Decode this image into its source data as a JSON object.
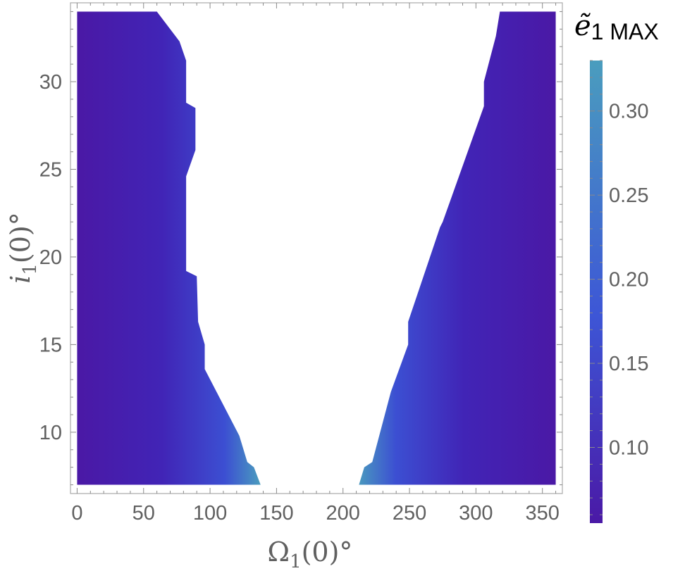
{
  "chart_data": {
    "type": "heatmap",
    "title": "",
    "xlabel": "Ω₁(0)°",
    "xlabel_parts": {
      "main": "Ω",
      "sub": "1",
      "rest": "(0)°"
    },
    "ylabel": "i₁(0)°",
    "ylabel_parts": {
      "main": "i",
      "sub": "1",
      "rest": "(0)°"
    },
    "xlim": [
      -5,
      365
    ],
    "ylim": [
      6.5,
      34.5
    ],
    "data_x_range": [
      0,
      360
    ],
    "data_y_range": [
      7,
      34
    ],
    "xticks": [
      0,
      50,
      100,
      150,
      200,
      250,
      300,
      350
    ],
    "yticks": [
      10,
      15,
      20,
      25,
      30
    ],
    "colorbar": {
      "title": "ẽ₁ MAX",
      "title_parts": {
        "main": "ẽ",
        "sub": "1 MAX"
      },
      "range": [
        0.055,
        0.33
      ],
      "ticks": [
        "0.10",
        "0.15",
        "0.20",
        "0.25",
        "0.30"
      ],
      "tick_values": [
        0.1,
        0.15,
        0.2,
        0.25,
        0.3
      ],
      "colors": [
        "#4a19a6",
        "#3d56d6",
        "#4a9dbe"
      ]
    },
    "left_region_boundary": [
      {
        "i": 7.0,
        "omega": 138
      },
      {
        "i": 8.0,
        "omega": 133
      },
      {
        "i": 8.3,
        "omega": 128
      },
      {
        "i": 9.8,
        "omega": 122
      },
      {
        "i": 13.6,
        "omega": 96
      },
      {
        "i": 15.0,
        "omega": 96
      },
      {
        "i": 16.3,
        "omega": 91
      },
      {
        "i": 18.9,
        "omega": 90
      },
      {
        "i": 19.2,
        "omega": 82
      },
      {
        "i": 24.6,
        "omega": 82
      },
      {
        "i": 26.1,
        "omega": 89
      },
      {
        "i": 28.5,
        "omega": 89
      },
      {
        "i": 28.8,
        "omega": 82
      },
      {
        "i": 31.2,
        "omega": 82
      },
      {
        "i": 32.3,
        "omega": 77
      },
      {
        "i": 34.0,
        "omega": 60
      }
    ],
    "right_region_boundary": [
      {
        "i": 7.0,
        "omega": 212
      },
      {
        "i": 8.0,
        "omega": 216
      },
      {
        "i": 8.3,
        "omega": 222
      },
      {
        "i": 12.3,
        "omega": 236
      },
      {
        "i": 15.0,
        "omega": 249
      },
      {
        "i": 16.3,
        "omega": 249
      },
      {
        "i": 21.7,
        "omega": 273
      },
      {
        "i": 22.0,
        "omega": 275
      },
      {
        "i": 28.6,
        "omega": 306
      },
      {
        "i": 30.0,
        "omega": 306
      },
      {
        "i": 32.6,
        "omega": 315
      },
      {
        "i": 34.0,
        "omega": 318
      }
    ]
  }
}
